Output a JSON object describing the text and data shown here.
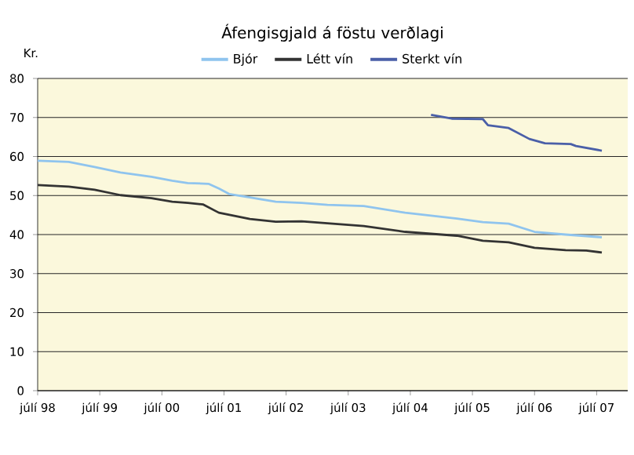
{
  "chart_data": {
    "type": "line",
    "title": "Áfengisgjald á föstu verðlagi",
    "ylabel": "Kr.",
    "xlim": [
      "1998-07",
      "2008-01"
    ],
    "ylim": [
      0,
      80
    ],
    "yticks": [
      0,
      10,
      20,
      30,
      40,
      50,
      60,
      70,
      80
    ],
    "xticks": [
      {
        "value": "1998-07",
        "label": "júlí 98"
      },
      {
        "value": "1999-07",
        "label": "júlí 99"
      },
      {
        "value": "2000-07",
        "label": "júlí 00"
      },
      {
        "value": "2001-07",
        "label": "júlí 01"
      },
      {
        "value": "2002-07",
        "label": "júlí 02"
      },
      {
        "value": "2003-07",
        "label": "júlí 03"
      },
      {
        "value": "2004-07",
        "label": "júlí 04"
      },
      {
        "value": "2005-07",
        "label": "júlí 05"
      },
      {
        "value": "2006-07",
        "label": "júlí 06"
      },
      {
        "value": "2007-07",
        "label": "júlí 07"
      }
    ],
    "grid": "y",
    "legend": "top",
    "marker": "none",
    "line_style": "solid",
    "series": [
      {
        "name": "Bjór",
        "color": "#8fc4ee",
        "x": [
          "1998-07",
          "1999-01",
          "1999-06",
          "1999-11",
          "2000-05",
          "2000-09",
          "2000-12",
          "2001-04",
          "2001-06",
          "2001-08",
          "2001-12",
          "2002-05",
          "2002-10",
          "2003-03",
          "2003-10",
          "2004-06",
          "2005-04",
          "2005-09",
          "2006-02",
          "2006-07",
          "2007-01",
          "2007-08"
        ],
        "values": [
          58.9,
          58.6,
          57.3,
          55.9,
          54.8,
          53.8,
          53.2,
          53,
          51.8,
          50.4,
          49.5,
          48.4,
          48.1,
          47.6,
          47.3,
          45.6,
          44.1,
          43.2,
          42.8,
          40.7,
          40,
          39.3
        ]
      },
      {
        "name": "Létt vín",
        "color": "#333333",
        "x": [
          "1998-07",
          "1999-01",
          "1999-06",
          "1999-11",
          "2000-05",
          "2000-09",
          "2000-12",
          "2001-03",
          "2001-06",
          "2001-12",
          "2002-05",
          "2002-10",
          "2003-03",
          "2003-10",
          "2004-06",
          "2005-04",
          "2005-09",
          "2006-02",
          "2006-07",
          "2007-01",
          "2007-05",
          "2007-08"
        ],
        "values": [
          52.7,
          52.3,
          51.5,
          50.1,
          49.3,
          48.4,
          48.1,
          47.7,
          45.6,
          44,
          43.3,
          43.4,
          42.9,
          42.2,
          40.7,
          39.7,
          38.4,
          38,
          36.6,
          36,
          35.9,
          35.4
        ]
      },
      {
        "name": "Sterkt vín",
        "color": "#4a5fa8",
        "x": [
          "2004-11",
          "2005-03",
          "2005-09",
          "2005-10",
          "2006-02",
          "2006-06",
          "2006-09",
          "2007-02",
          "2007-03",
          "2007-08"
        ],
        "values": [
          70.7,
          69.7,
          69.6,
          68,
          67.3,
          64.5,
          63.4,
          63.2,
          62.7,
          61.5
        ]
      }
    ]
  }
}
